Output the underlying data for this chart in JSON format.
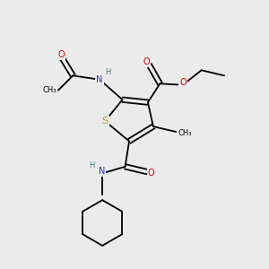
{
  "bg_color": "#ebebeb",
  "atom_colors": {
    "C": "#000000",
    "N": "#3030c0",
    "O": "#cc0000",
    "S": "#b8a000",
    "H": "#3d8080"
  },
  "figsize": [
    3.0,
    3.0
  ],
  "dpi": 100,
  "lw": 1.3,
  "fs": 7.0,
  "fs_small": 6.0
}
